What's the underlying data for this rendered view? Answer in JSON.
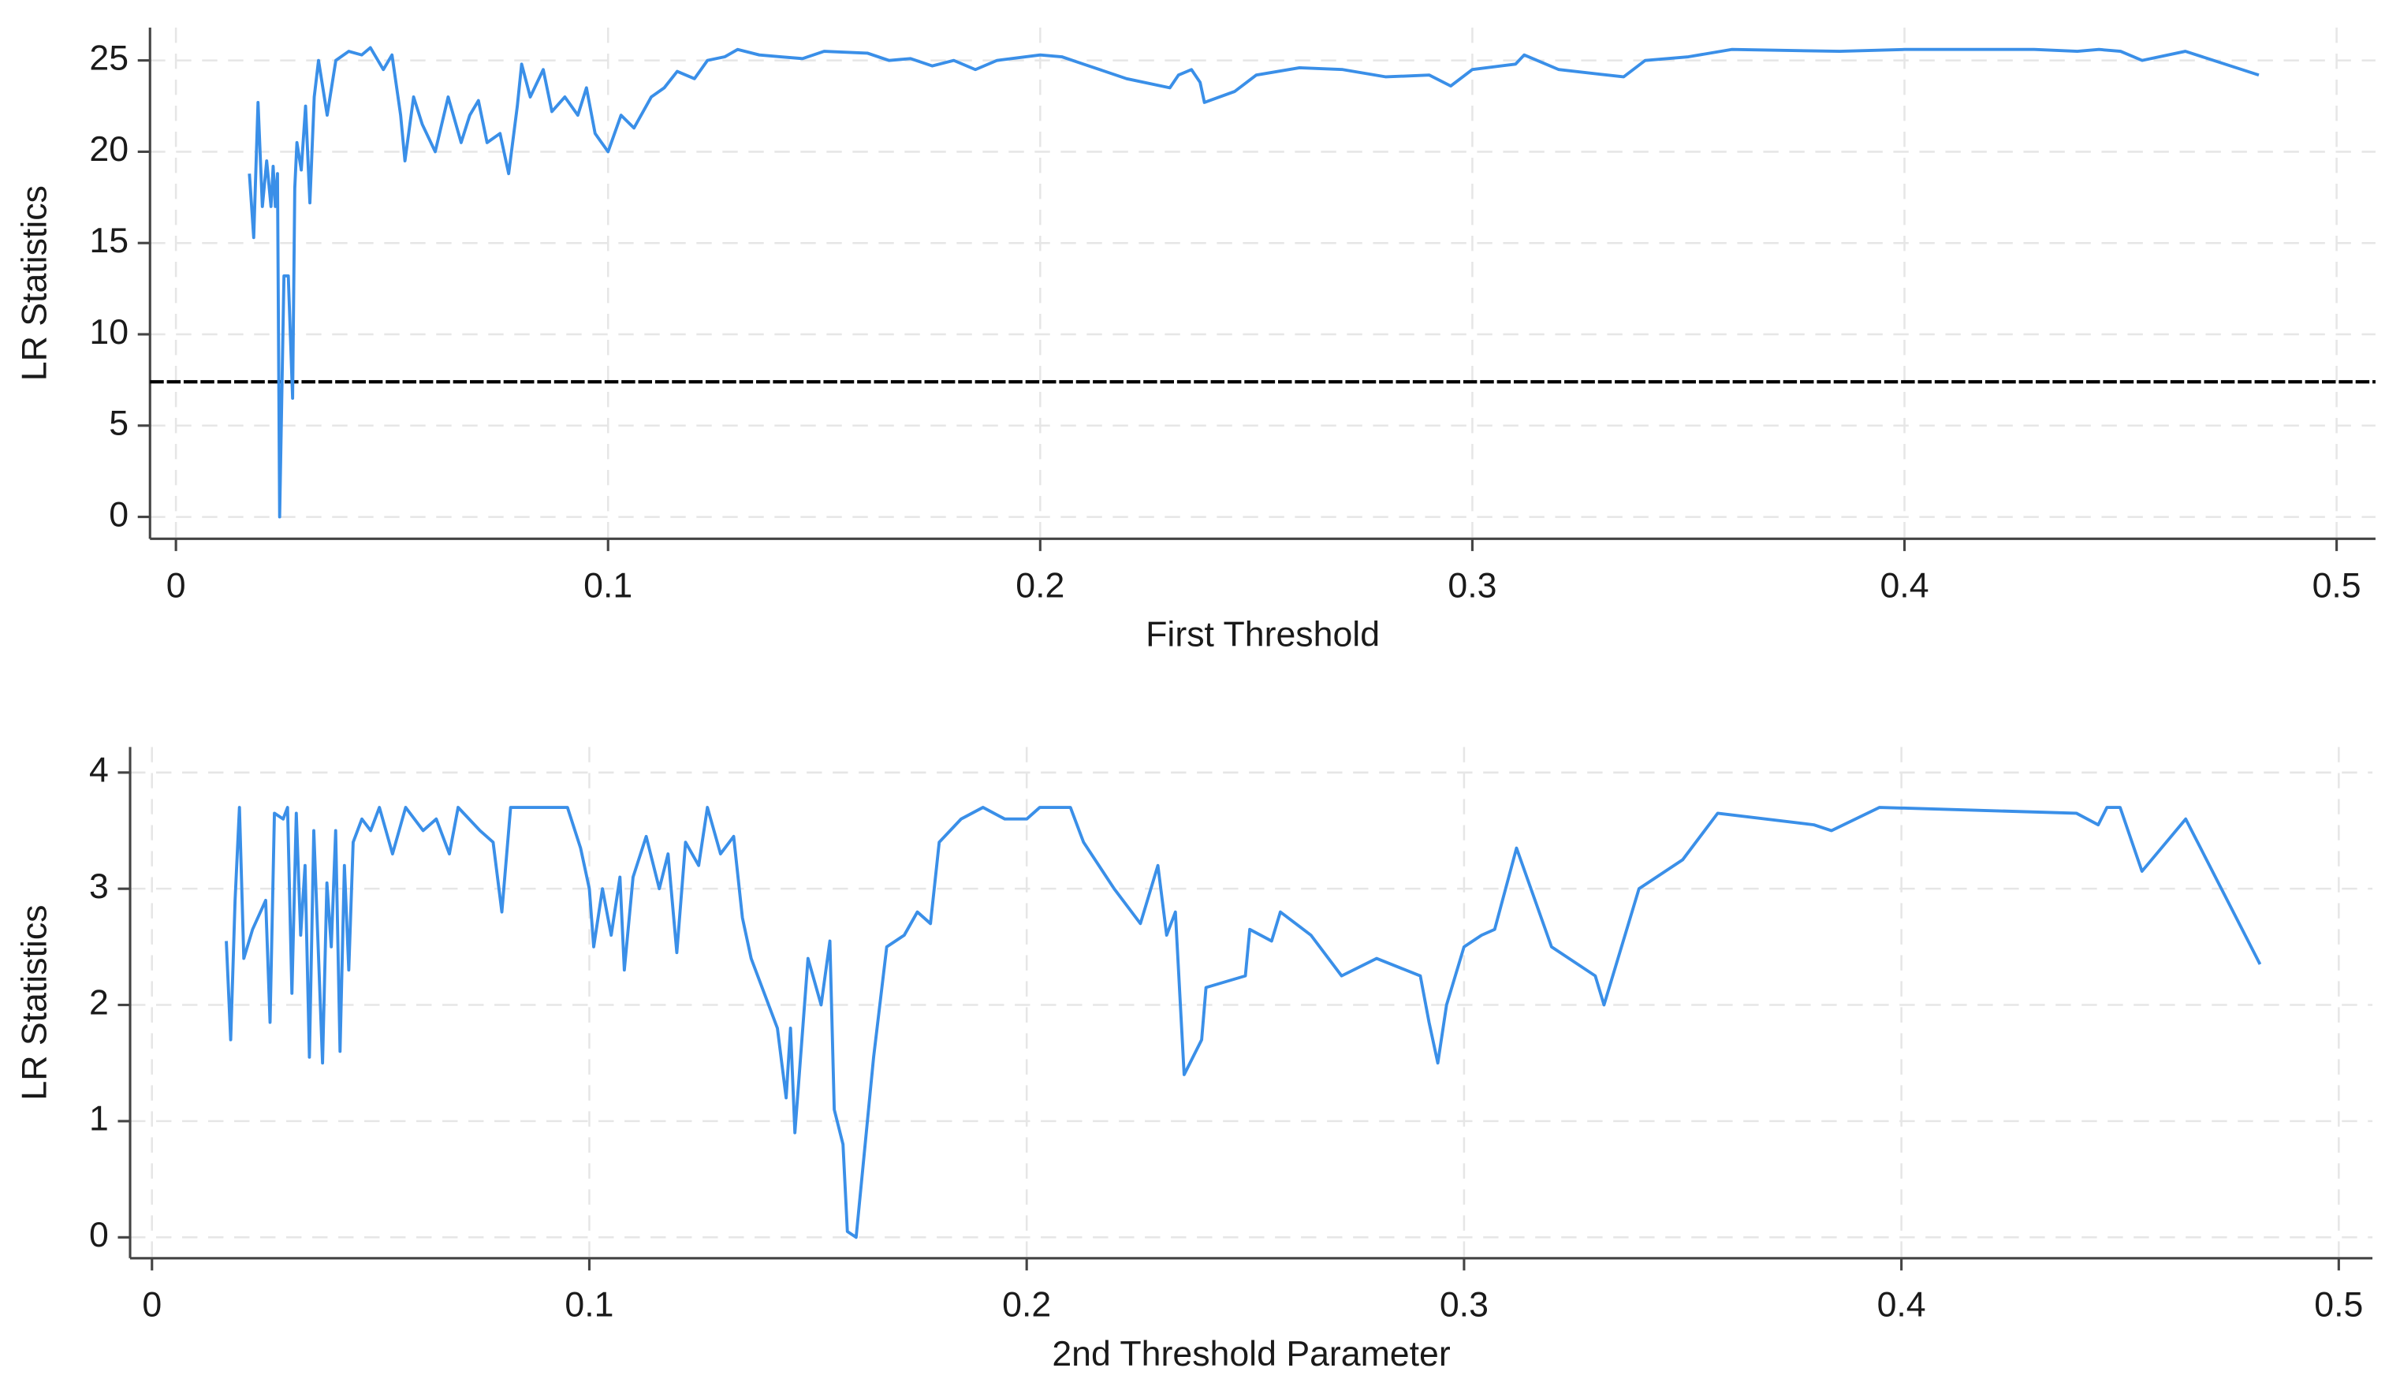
{
  "chart_data": [
    {
      "type": "line",
      "xlabel": "First Threshold",
      "ylabel": "LR Statistics",
      "xlim": [
        -0.006,
        0.509
      ],
      "ylim": [
        -1.2,
        26.8
      ],
      "xticks": [
        0,
        0.1,
        0.2,
        0.3,
        0.4,
        0.5
      ],
      "yticks": [
        0,
        5,
        10,
        15,
        20,
        25
      ],
      "grid": true,
      "reference_line": {
        "value": 7.4,
        "color": "#000000"
      },
      "x": [
        0.017,
        0.018,
        0.019,
        0.02,
        0.021,
        0.022,
        0.0225,
        0.023,
        0.0235,
        0.024,
        0.025,
        0.026,
        0.027,
        0.0275,
        0.028,
        0.029,
        0.03,
        0.031,
        0.032,
        0.033,
        0.035,
        0.037,
        0.04,
        0.043,
        0.045,
        0.048,
        0.05,
        0.052,
        0.053,
        0.055,
        0.057,
        0.06,
        0.063,
        0.066,
        0.068,
        0.07,
        0.072,
        0.075,
        0.077,
        0.079,
        0.08,
        0.082,
        0.085,
        0.087,
        0.09,
        0.093,
        0.095,
        0.097,
        0.1,
        0.103,
        0.106,
        0.11,
        0.113,
        0.116,
        0.12,
        0.123,
        0.127,
        0.13,
        0.135,
        0.14,
        0.145,
        0.15,
        0.16,
        0.165,
        0.17,
        0.175,
        0.18,
        0.185,
        0.19,
        0.2,
        0.205,
        0.21,
        0.22,
        0.23,
        0.232,
        0.235,
        0.237,
        0.238,
        0.245,
        0.25,
        0.26,
        0.27,
        0.28,
        0.29,
        0.295,
        0.3,
        0.31,
        0.312,
        0.32,
        0.335,
        0.34,
        0.35,
        0.36,
        0.385,
        0.4,
        0.43,
        0.44,
        0.445,
        0.45,
        0.455,
        0.465,
        0.482
      ],
      "series": [
        {
          "name": "LR Statistics",
          "color": "#3a8fe8",
          "values": [
            18.8,
            15.3,
            22.7,
            17,
            19.5,
            17,
            19.2,
            17,
            18.8,
            0,
            13.2,
            13.2,
            6.5,
            18,
            20.5,
            19,
            22.5,
            17.2,
            23,
            25,
            22,
            25,
            25.5,
            25.3,
            25.7,
            24.5,
            25.3,
            22,
            19.5,
            23,
            21.5,
            20,
            23,
            20.5,
            22,
            22.8,
            20.5,
            21,
            18.8,
            22.5,
            24.8,
            23,
            24.5,
            22.2,
            23,
            22,
            23.5,
            21,
            20,
            22,
            21.3,
            23,
            23.5,
            24.4,
            24,
            25,
            25.2,
            25.6,
            25.3,
            25.2,
            25.1,
            25.5,
            25.4,
            25,
            25.1,
            24.7,
            25,
            24.5,
            25,
            25.3,
            25.2,
            24.8,
            24,
            23.5,
            24.2,
            24.5,
            23.8,
            22.7,
            23.3,
            24.2,
            24.6,
            24.5,
            24.1,
            24.2,
            23.6,
            24.5,
            24.8,
            25.3,
            24.5,
            24.1,
            25,
            25.2,
            25.6,
            25.5,
            25.6,
            25.6,
            25.5,
            25.6,
            25.5,
            25,
            25.5,
            24.2
          ]
        }
      ]
    },
    {
      "type": "line",
      "xlabel": "2nd Threshold Parameter",
      "ylabel": "LR Statistics",
      "xlim": [
        -0.005,
        0.5077
      ],
      "ylim": [
        -0.18,
        4.22
      ],
      "xticks": [
        0,
        0.1,
        0.2,
        0.3,
        0.4,
        0.5
      ],
      "yticks": [
        0,
        1,
        2,
        3,
        4
      ],
      "grid": true,
      "x": [
        0.017,
        0.018,
        0.019,
        0.02,
        0.021,
        0.023,
        0.026,
        0.027,
        0.028,
        0.03,
        0.031,
        0.032,
        0.033,
        0.034,
        0.035,
        0.036,
        0.037,
        0.039,
        0.04,
        0.041,
        0.042,
        0.043,
        0.044,
        0.045,
        0.046,
        0.048,
        0.05,
        0.052,
        0.055,
        0.058,
        0.062,
        0.065,
        0.068,
        0.07,
        0.075,
        0.078,
        0.08,
        0.082,
        0.09,
        0.095,
        0.098,
        0.1,
        0.101,
        0.103,
        0.105,
        0.107,
        0.108,
        0.11,
        0.113,
        0.116,
        0.118,
        0.12,
        0.122,
        0.125,
        0.127,
        0.13,
        0.133,
        0.135,
        0.137,
        0.14,
        0.143,
        0.145,
        0.146,
        0.147,
        0.148,
        0.15,
        0.153,
        0.155,
        0.156,
        0.158,
        0.159,
        0.161,
        0.165,
        0.168,
        0.172,
        0.175,
        0.178,
        0.18,
        0.185,
        0.19,
        0.195,
        0.2,
        0.203,
        0.21,
        0.213,
        0.22,
        0.226,
        0.23,
        0.232,
        0.234,
        0.236,
        0.24,
        0.241,
        0.25,
        0.251,
        0.256,
        0.258,
        0.265,
        0.272,
        0.28,
        0.29,
        0.292,
        0.294,
        0.296,
        0.3,
        0.304,
        0.307,
        0.312,
        0.32,
        0.33,
        0.332,
        0.34,
        0.35,
        0.358,
        0.38,
        0.384,
        0.395,
        0.44,
        0.445,
        0.447,
        0.45,
        0.455,
        0.465,
        0.482
      ],
      "series": [
        {
          "name": "LR Statistics",
          "color": "#3a8fe8",
          "values": [
            2.55,
            1.7,
            2.9,
            3.7,
            2.4,
            2.65,
            2.9,
            1.85,
            3.65,
            3.6,
            3.7,
            2.1,
            3.65,
            2.6,
            3.2,
            1.55,
            3.5,
            1.5,
            3.05,
            2.5,
            3.5,
            1.6,
            3.2,
            2.3,
            3.4,
            3.6,
            3.5,
            3.7,
            3.3,
            3.7,
            3.5,
            3.6,
            3.3,
            3.7,
            3.5,
            3.4,
            2.8,
            3.7,
            3.7,
            3.7,
            3.35,
            3.0,
            2.5,
            3.0,
            2.6,
            3.1,
            2.3,
            3.1,
            3.45,
            3.0,
            3.3,
            2.45,
            3.4,
            3.2,
            3.7,
            3.3,
            3.45,
            2.75,
            2.4,
            2.1,
            1.8,
            1.2,
            1.8,
            0.9,
            1.4,
            2.4,
            2.0,
            2.55,
            1.1,
            0.8,
            0.05,
            0.0,
            1.55,
            2.5,
            2.6,
            2.8,
            2.7,
            3.4,
            3.6,
            3.7,
            3.6,
            3.6,
            3.7,
            3.7,
            3.4,
            3.0,
            2.7,
            3.2,
            2.6,
            2.8,
            1.4,
            1.7,
            2.15,
            2.25,
            2.65,
            2.55,
            2.8,
            2.6,
            2.25,
            2.4,
            2.25,
            1.85,
            1.5,
            2.0,
            2.5,
            2.6,
            2.65,
            3.35,
            2.5,
            2.25,
            2.0,
            3.0,
            3.25,
            3.65,
            3.55,
            3.5,
            3.7,
            3.65,
            3.55,
            3.7,
            3.7,
            3.15,
            3.6,
            2.35
          ]
        }
      ]
    }
  ]
}
